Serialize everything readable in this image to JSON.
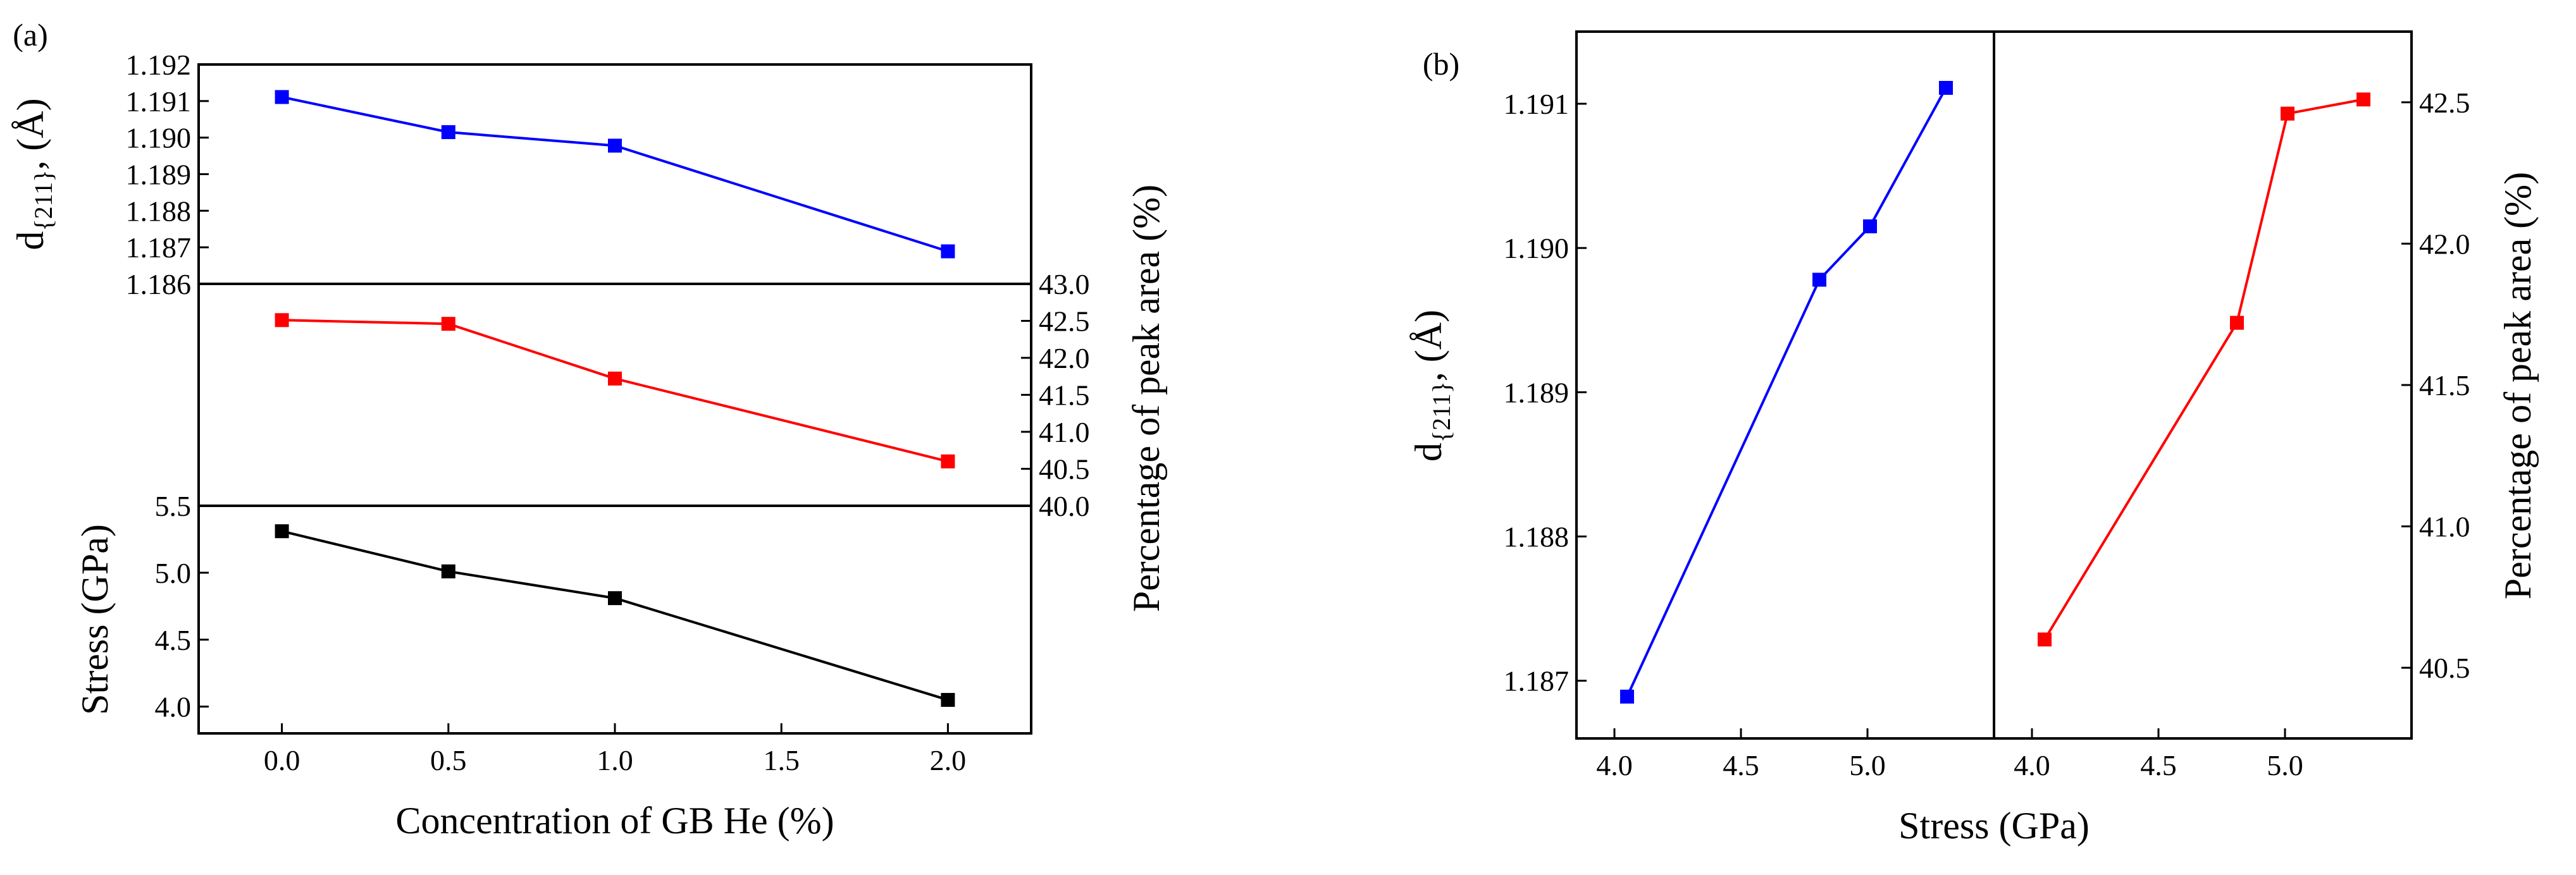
{
  "chart_data": [
    {
      "id": "a-top",
      "type": "line",
      "panel_label": "(a)",
      "xlabel": "Concentration of GB He (%)",
      "x_ticks": [
        "0.0",
        "0.5",
        "1.0",
        "1.5",
        "2.0"
      ],
      "xlim": [
        -0.25,
        2.25
      ],
      "ylabel": {
        "main": "d",
        "sub": "{211}",
        "unit": "(Å)"
      },
      "ylim": [
        1.186,
        1.192
      ],
      "y_ticks": [
        "1.186",
        "1.187",
        "1.188",
        "1.189",
        "1.190",
        "1.191",
        "1.192"
      ],
      "series": [
        {
          "name": "d{211}",
          "color": "#0000ff",
          "marker": "square",
          "x": [
            0.0,
            0.5,
            1.0,
            2.0
          ],
          "values": [
            1.19111,
            1.19015,
            1.18978,
            1.18689
          ]
        }
      ]
    },
    {
      "id": "a-middle",
      "type": "line",
      "ylabel": "Percentage of peak area (%)",
      "ylim": [
        40.0,
        43.0
      ],
      "y_ticks": [
        "40.0",
        "40.5",
        "41.0",
        "41.5",
        "42.0",
        "42.5",
        "43.0"
      ],
      "series": [
        {
          "name": "Percentage of peak area",
          "color": "#ff0000",
          "marker": "square",
          "x": [
            0.0,
            0.5,
            1.0,
            2.0
          ],
          "values": [
            42.51,
            42.46,
            41.72,
            40.6
          ]
        }
      ]
    },
    {
      "id": "a-bottom",
      "type": "line",
      "ylabel": "Stress (GPa)",
      "ylim": [
        3.8,
        5.5
      ],
      "y_ticks": [
        "4.0",
        "4.5",
        "5.0",
        "5.5"
      ],
      "series": [
        {
          "name": "Stress",
          "color": "#000000",
          "marker": "square",
          "x": [
            0.0,
            0.5,
            1.0,
            2.0
          ],
          "values": [
            5.31,
            5.01,
            4.81,
            4.05
          ]
        }
      ]
    },
    {
      "id": "b-left",
      "type": "line",
      "panel_label": "(b)",
      "xlabel": "Stress (GPa)",
      "xlim": [
        3.85,
        5.5
      ],
      "x_ticks": [
        "4.0",
        "4.5",
        "5.0"
      ],
      "ylabel": {
        "main": "d",
        "sub": "{211}",
        "unit": "(Å)"
      },
      "ylim": [
        1.1866,
        1.1915
      ],
      "y_ticks": [
        "1.187",
        "1.188",
        "1.189",
        "1.190",
        "1.191"
      ],
      "series": [
        {
          "name": "d{211}",
          "color": "#0000ff",
          "marker": "square",
          "x": [
            4.05,
            4.81,
            5.01,
            5.31
          ],
          "values": [
            1.18689,
            1.18978,
            1.19015,
            1.19111
          ]
        }
      ]
    },
    {
      "id": "b-right",
      "type": "line",
      "xlim": [
        3.85,
        5.5
      ],
      "x_ticks": [
        "4.0",
        "4.5",
        "5.0"
      ],
      "ylabel": "Percentage of peak area (%)",
      "ylim": [
        40.25,
        42.75
      ],
      "y_ticks": [
        "40.5",
        "41.0",
        "41.5",
        "42.0",
        "42.5"
      ],
      "series": [
        {
          "name": "Percentage of peak area",
          "color": "#ff0000",
          "marker": "square",
          "x": [
            4.05,
            4.81,
            5.01,
            5.31
          ],
          "values": [
            40.6,
            41.72,
            42.46,
            42.51
          ]
        }
      ]
    }
  ]
}
